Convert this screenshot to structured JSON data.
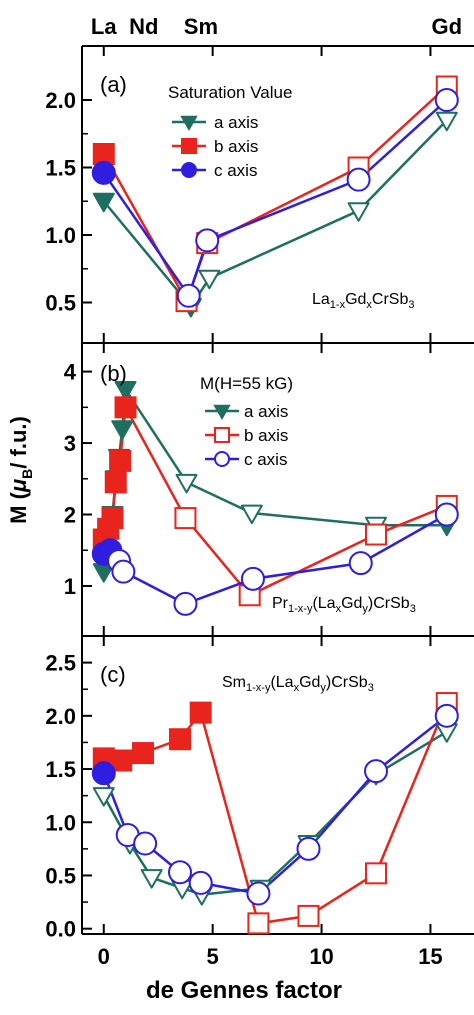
{
  "figure": {
    "top_labels": [
      {
        "text": "La",
        "x": 0
      },
      {
        "text": "Nd",
        "x": 1.84
      },
      {
        "text": "Sm",
        "x": 4.46
      },
      {
        "text": "Gd",
        "x": 15.75
      }
    ],
    "xlabel": "de Gennes factor",
    "ylabel_parts": [
      "M (",
      "μ",
      "B",
      "/ f.u.)"
    ],
    "x_ticks": [
      0,
      5,
      10,
      15
    ],
    "x_range": [
      -1,
      17
    ]
  },
  "colors": {
    "a": "#1f6f60",
    "b": "#e8241c",
    "c": "#2f1ee0",
    "axis": "#000000"
  },
  "chart_data": [
    {
      "type": "line",
      "panel_label": "(a)",
      "legend_title": "Saturation Value",
      "compound": {
        "parts": [
          [
            "La",
            ""
          ],
          [
            "1-x",
            "sub"
          ],
          [
            "Gd",
            ""
          ],
          [
            "x",
            "sub"
          ],
          [
            "CrSb",
            ""
          ],
          [
            "3",
            "sub"
          ]
        ]
      },
      "ylim": [
        0.2,
        2.4
      ],
      "y_ticks": [
        0.5,
        1.0,
        1.5,
        2.0
      ],
      "y_tick_labels": [
        "0.5",
        "1.0",
        "1.5",
        "2.0"
      ],
      "x_ticks": [
        0,
        5,
        10,
        15
      ],
      "series": [
        {
          "name": "a axis",
          "key": "a",
          "marker": "triangle-down",
          "points": [
            {
              "x": 0,
              "y": 1.25,
              "f": true
            },
            {
              "x": 4.0,
              "y": 0.47,
              "f": true
            },
            {
              "x": 4.85,
              "y": 0.68,
              "f": false
            },
            {
              "x": 11.7,
              "y": 1.18,
              "f": false
            },
            {
              "x": 15.75,
              "y": 1.85,
              "f": false
            }
          ]
        },
        {
          "name": "b axis",
          "key": "b",
          "marker": "square",
          "points": [
            {
              "x": 0,
              "y": 1.6,
              "f": true
            },
            {
              "x": 3.8,
              "y": 0.51,
              "f": false
            },
            {
              "x": 4.75,
              "y": 0.94,
              "f": false
            },
            {
              "x": 11.7,
              "y": 1.5,
              "f": false
            },
            {
              "x": 15.75,
              "y": 2.1,
              "f": false
            }
          ]
        },
        {
          "name": "c axis",
          "key": "c",
          "marker": "circle",
          "points": [
            {
              "x": 0,
              "y": 1.46,
              "f": true
            },
            {
              "x": 3.9,
              "y": 0.55,
              "f": false
            },
            {
              "x": 4.75,
              "y": 0.96,
              "f": false
            },
            {
              "x": 11.7,
              "y": 1.41,
              "f": false
            },
            {
              "x": 15.75,
              "y": 2.0,
              "f": false
            }
          ]
        }
      ]
    },
    {
      "type": "line",
      "panel_label": "(b)",
      "legend_title": "M(H=55 kG)",
      "compound": {
        "parts": [
          [
            "Pr",
            ""
          ],
          [
            "1-x-y",
            "sub"
          ],
          [
            "(La",
            ""
          ],
          [
            "x",
            "sub"
          ],
          [
            "Gd",
            ""
          ],
          [
            "y",
            "sub"
          ],
          [
            ")CrSb",
            ""
          ],
          [
            "3",
            "sub"
          ]
        ]
      },
      "ylim": [
        0.3,
        4.4
      ],
      "y_ticks": [
        1,
        2,
        3,
        4
      ],
      "y_tick_labels": [
        "1",
        "2",
        "3",
        "4"
      ],
      "x_ticks": [
        0,
        5,
        10,
        15
      ],
      "series": [
        {
          "name": "a axis",
          "key": "a",
          "marker": "triangle-down",
          "points": [
            {
              "x": 0,
              "y": 1.2,
              "f": true
            },
            {
              "x": 0.1,
              "y": 1.5,
              "f": true
            },
            {
              "x": 0.25,
              "y": 1.8,
              "f": true
            },
            {
              "x": 0.4,
              "y": 2.0,
              "f": true
            },
            {
              "x": 0.55,
              "y": 2.5,
              "f": true
            },
            {
              "x": 0.7,
              "y": 2.8,
              "f": true
            },
            {
              "x": 0.85,
              "y": 3.2,
              "f": true
            },
            {
              "x": 1.0,
              "y": 3.75,
              "f": true
            },
            {
              "x": 3.8,
              "y": 2.45,
              "f": false
            },
            {
              "x": 6.8,
              "y": 2.02,
              "f": false
            },
            {
              "x": 12.5,
              "y": 1.85,
              "f": false
            },
            {
              "x": 15.75,
              "y": 1.85,
              "f": true
            }
          ]
        },
        {
          "name": "b axis",
          "key": "b",
          "marker": "square",
          "points": [
            {
              "x": 0,
              "y": 1.65,
              "f": true
            },
            {
              "x": 0.2,
              "y": 1.8,
              "f": true
            },
            {
              "x": 0.4,
              "y": 1.95,
              "f": true
            },
            {
              "x": 0.55,
              "y": 2.45,
              "f": true
            },
            {
              "x": 0.75,
              "y": 2.75,
              "f": true
            },
            {
              "x": 1.0,
              "y": 3.5,
              "f": true
            },
            {
              "x": 3.75,
              "y": 1.95,
              "f": false
            },
            {
              "x": 6.7,
              "y": 0.87,
              "f": false
            },
            {
              "x": 12.5,
              "y": 1.72,
              "f": false
            },
            {
              "x": 15.75,
              "y": 2.12,
              "f": false
            }
          ]
        },
        {
          "name": "c axis",
          "key": "c",
          "marker": "circle",
          "points": [
            {
              "x": 0,
              "y": 1.45,
              "f": true
            },
            {
              "x": 0.3,
              "y": 1.5,
              "f": true
            },
            {
              "x": 0.7,
              "y": 1.35,
              "f": false
            },
            {
              "x": 0.9,
              "y": 1.2,
              "f": false
            },
            {
              "x": 3.75,
              "y": 0.75,
              "f": false
            },
            {
              "x": 6.85,
              "y": 1.1,
              "f": false
            },
            {
              "x": 11.8,
              "y": 1.32,
              "f": false
            },
            {
              "x": 15.75,
              "y": 2.0,
              "f": false
            }
          ]
        }
      ]
    },
    {
      "type": "line",
      "panel_label": "(c)",
      "legend_title": "",
      "compound": {
        "parts": [
          [
            "Sm",
            ""
          ],
          [
            "1-x-y",
            "sub"
          ],
          [
            "(La",
            ""
          ],
          [
            "x",
            "sub"
          ],
          [
            "Gd",
            ""
          ],
          [
            "y",
            "sub"
          ],
          [
            ")CrSb",
            ""
          ],
          [
            "3",
            "sub"
          ]
        ]
      },
      "ylim": [
        -0.05,
        2.75
      ],
      "y_ticks": [
        0.0,
        0.5,
        1.0,
        1.5,
        2.0,
        2.5
      ],
      "y_tick_labels": [
        "0.0",
        "0.5",
        "1.0",
        "1.5",
        "2.0",
        "2.5"
      ],
      "x_ticks": [
        0,
        5,
        10,
        15
      ],
      "series": [
        {
          "name": "a axis",
          "key": "a",
          "marker": "triangle-down",
          "points": [
            {
              "x": 0,
              "y": 1.25,
              "f": false
            },
            {
              "x": 1.2,
              "y": 0.8,
              "f": false
            },
            {
              "x": 2.2,
              "y": 0.48,
              "f": false
            },
            {
              "x": 3.6,
              "y": 0.38,
              "f": false
            },
            {
              "x": 4.5,
              "y": 0.32,
              "f": false
            },
            {
              "x": 7.2,
              "y": 0.38,
              "f": false
            },
            {
              "x": 9.4,
              "y": 0.8,
              "f": false
            },
            {
              "x": 12.5,
              "y": 1.45,
              "f": false
            },
            {
              "x": 15.75,
              "y": 1.85,
              "f": false
            }
          ]
        },
        {
          "name": "b axis",
          "key": "b",
          "marker": "square",
          "points": [
            {
              "x": 0,
              "y": 1.6,
              "f": true
            },
            {
              "x": 0.8,
              "y": 1.58,
              "f": true
            },
            {
              "x": 1.8,
              "y": 1.65,
              "f": true
            },
            {
              "x": 3.5,
              "y": 1.78,
              "f": true
            },
            {
              "x": 4.45,
              "y": 2.03,
              "f": true
            },
            {
              "x": 7.1,
              "y": 0.05,
              "f": false
            },
            {
              "x": 9.4,
              "y": 0.12,
              "f": false
            },
            {
              "x": 12.5,
              "y": 0.52,
              "f": false
            },
            {
              "x": 15.75,
              "y": 2.12,
              "f": false
            }
          ]
        },
        {
          "name": "c axis",
          "key": "c",
          "marker": "circle",
          "points": [
            {
              "x": 0,
              "y": 1.46,
              "f": true
            },
            {
              "x": 1.1,
              "y": 0.88,
              "f": false
            },
            {
              "x": 1.9,
              "y": 0.8,
              "f": false
            },
            {
              "x": 3.5,
              "y": 0.53,
              "f": false
            },
            {
              "x": 4.45,
              "y": 0.43,
              "f": false
            },
            {
              "x": 7.1,
              "y": 0.33,
              "f": false
            },
            {
              "x": 9.4,
              "y": 0.75,
              "f": false
            },
            {
              "x": 12.5,
              "y": 1.48,
              "f": false
            },
            {
              "x": 15.75,
              "y": 2.0,
              "f": false
            }
          ]
        }
      ]
    }
  ]
}
